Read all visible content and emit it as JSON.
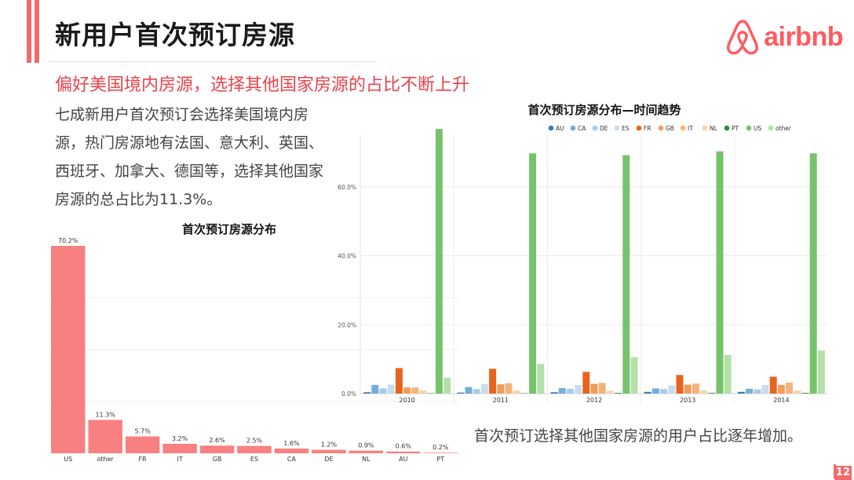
{
  "header": {
    "title": "新用户首次预订房源",
    "logo_text": "airbnb",
    "logo_color": "#ff5a5f"
  },
  "subtitle": "偏好美国境内房源，选择其他国家房源的占比不断上升",
  "description": "七成新用户首次预订会选择美国境内房源，热门房源地有法国、意大利、英国、西班牙、加拿大、德国等，选择其他国家房源的总占比为11.3%。",
  "note": "首次预订选择其他国家房源的用户占比逐年增加。",
  "page_number": "12",
  "colors": {
    "accent": "#f26b6b",
    "subtitle": "#e8434b"
  },
  "chart_data": [
    {
      "type": "bar",
      "title": "首次预订房源分布",
      "categories": [
        "US",
        "other",
        "FR",
        "IT",
        "GB",
        "ES",
        "CA",
        "DE",
        "NL",
        "AU",
        "PT"
      ],
      "values": [
        70.2,
        11.3,
        5.7,
        3.2,
        2.6,
        2.5,
        1.6,
        1.2,
        0.9,
        0.6,
        0.2
      ],
      "value_labels": [
        "70.2%",
        "11.3%",
        "5.7%",
        "3.2%",
        "2.6%",
        "2.5%",
        "1.6%",
        "1.2%",
        "0.9%",
        "0.6%",
        "0.2%"
      ],
      "ylim": [
        0,
        70.2
      ],
      "bar_color": "#f98080",
      "grid": true
    },
    {
      "type": "bar",
      "title": "首次预订房源分布—时间趋势",
      "categories": [
        "2010",
        "2011",
        "2012",
        "2013",
        "2014"
      ],
      "ylim": [
        0,
        75
      ],
      "yticks": [
        0,
        20,
        40,
        60
      ],
      "ytick_labels": [
        "0.0%",
        "20.0%",
        "40.0%",
        "60.0%"
      ],
      "legend_position": "top",
      "grid": true,
      "series": [
        {
          "name": "AU",
          "color": "#3a7dc0",
          "values": [
            0.4,
            0.3,
            0.4,
            0.5,
            0.5
          ]
        },
        {
          "name": "CA",
          "color": "#74aedb",
          "values": [
            2.5,
            1.9,
            1.6,
            1.5,
            1.4
          ]
        },
        {
          "name": "DE",
          "color": "#a7cbe8",
          "values": [
            1.5,
            1.3,
            1.4,
            1.3,
            1.2
          ]
        },
        {
          "name": "ES",
          "color": "#c9dcee",
          "values": [
            2.6,
            2.8,
            2.5,
            2.4,
            2.5
          ]
        },
        {
          "name": "FR",
          "color": "#e8641e",
          "values": [
            7.4,
            7.2,
            6.3,
            5.4,
            4.9
          ]
        },
        {
          "name": "GB",
          "color": "#f39c5a",
          "values": [
            1.8,
            2.7,
            2.8,
            2.6,
            2.5
          ]
        },
        {
          "name": "IT",
          "color": "#f7b27c",
          "values": [
            1.8,
            3.0,
            3.1,
            2.9,
            3.2
          ]
        },
        {
          "name": "NL",
          "color": "#f8d3ad",
          "values": [
            0.9,
            0.9,
            0.8,
            0.9,
            0.9
          ]
        },
        {
          "name": "PT",
          "color": "#2a8d3a",
          "values": [
            0.1,
            0.1,
            0.2,
            0.2,
            0.2
          ]
        },
        {
          "name": "US",
          "color": "#75c36b",
          "values": [
            76.8,
            69.7,
            69.2,
            70.3,
            69.7
          ]
        },
        {
          "name": "other",
          "color": "#b3e0a8",
          "values": [
            4.6,
            8.6,
            10.6,
            11.2,
            12.5
          ]
        }
      ]
    }
  ]
}
